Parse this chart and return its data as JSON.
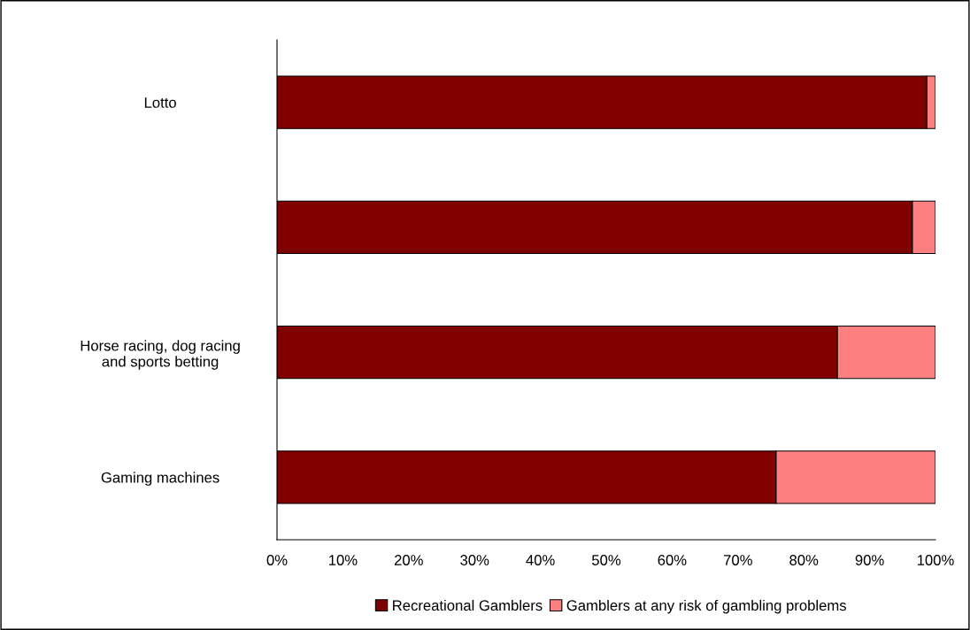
{
  "chart_data": {
    "type": "bar",
    "orientation": "horizontal",
    "stacked": true,
    "categories": [
      "Lotto",
      null,
      "Horse racing, dog racing\nand sports betting",
      "Gaming machines"
    ],
    "series": [
      {
        "name": "Recreational Gamblers",
        "color": "#800000",
        "values": [
          98.7,
          96.5,
          85.1,
          75.8
        ]
      },
      {
        "name": "Gamblers at any risk of gambling problems",
        "color": "#ff8080",
        "values": [
          1.3,
          3.5,
          14.9,
          24.2
        ]
      }
    ],
    "xlim": [
      0,
      100
    ],
    "xticks": [
      {
        "value": 0,
        "label": "0%"
      },
      {
        "value": 10,
        "label": "10%"
      },
      {
        "value": 20,
        "label": "20%"
      },
      {
        "value": 30,
        "label": "30%"
      },
      {
        "value": 40,
        "label": "40%"
      },
      {
        "value": 50,
        "label": "50%"
      },
      {
        "value": 60,
        "label": "60%"
      },
      {
        "value": 70,
        "label": "70%"
      },
      {
        "value": 80,
        "label": "80%"
      },
      {
        "value": 90,
        "label": "90%"
      },
      {
        "value": 100,
        "label": "100%"
      }
    ],
    "grid": false,
    "legend": "bottom"
  }
}
